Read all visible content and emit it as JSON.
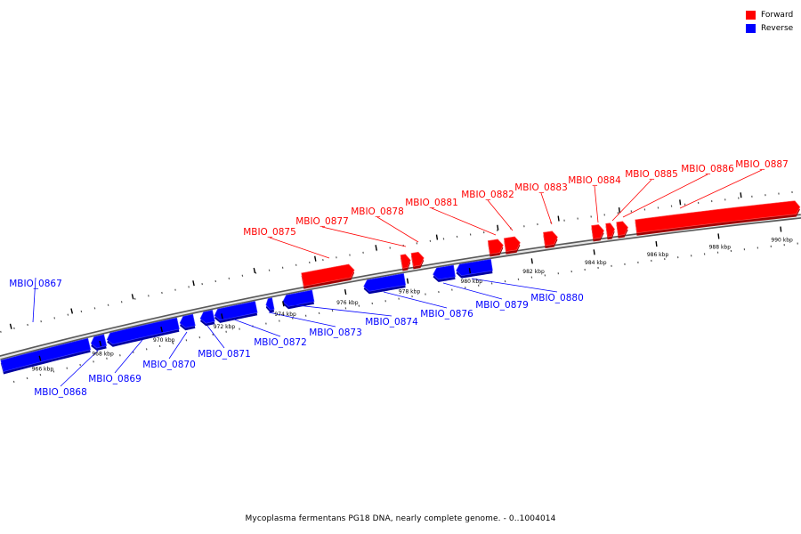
{
  "legend": {
    "forward": {
      "label": "Forward",
      "color": "#ff0000"
    },
    "reverse": {
      "label": "Reverse",
      "color": "#0000ff"
    }
  },
  "caption": "Mycoplasma fermentans PG18 DNA, nearly complete genome. - 0..1004014",
  "ruler": {
    "unit": "kbp",
    "ticks": [
      {
        "label": "966 kbp"
      },
      {
        "label": "968 kbp"
      },
      {
        "label": "970 kbp"
      },
      {
        "label": "972 kbp"
      },
      {
        "label": "974 kbp"
      },
      {
        "label": "976 kbp"
      },
      {
        "label": "978 kbp"
      },
      {
        "label": "980 kbp"
      },
      {
        "label": "982 kbp"
      },
      {
        "label": "984 kbp"
      },
      {
        "label": "986 kbp"
      },
      {
        "label": "988 kbp"
      },
      {
        "label": "990 kbp"
      }
    ]
  },
  "genes": [
    {
      "name": "MBIO_0867",
      "strand": "reverse"
    },
    {
      "name": "MBIO_0868",
      "strand": "reverse"
    },
    {
      "name": "MBIO_0869",
      "strand": "reverse"
    },
    {
      "name": "MBIO_0870",
      "strand": "reverse"
    },
    {
      "name": "MBIO_0871",
      "strand": "reverse"
    },
    {
      "name": "MBIO_0872",
      "strand": "reverse"
    },
    {
      "name": "MBIO_0873",
      "strand": "reverse"
    },
    {
      "name": "MBIO_0874",
      "strand": "reverse"
    },
    {
      "name": "MBIO_0876",
      "strand": "reverse"
    },
    {
      "name": "MBIO_0879",
      "strand": "reverse"
    },
    {
      "name": "MBIO_0880",
      "strand": "reverse"
    },
    {
      "name": "MBIO_0875",
      "strand": "forward"
    },
    {
      "name": "MBIO_0877",
      "strand": "forward"
    },
    {
      "name": "MBIO_0878",
      "strand": "forward"
    },
    {
      "name": "MBIO_0881",
      "strand": "forward"
    },
    {
      "name": "MBIO_0882",
      "strand": "forward"
    },
    {
      "name": "MBIO_0883",
      "strand": "forward"
    },
    {
      "name": "MBIO_0884",
      "strand": "forward"
    },
    {
      "name": "MBIO_0885",
      "strand": "forward"
    },
    {
      "name": "MBIO_0886",
      "strand": "forward"
    },
    {
      "name": "MBIO_0887",
      "strand": "forward"
    }
  ]
}
